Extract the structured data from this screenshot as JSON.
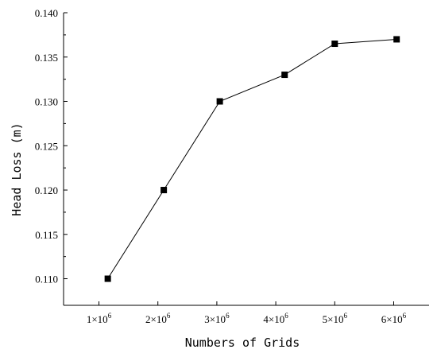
{
  "chart_data": {
    "type": "line",
    "xlabel": "Numbers of Grids",
    "ylabel": "Head Loss (m)",
    "ylim": [
      0.107,
      0.14
    ],
    "xlim": [
      0.4,
      6.6
    ],
    "x_ticks": [
      {
        "value": 1,
        "mantissa": "1",
        "base": "×10",
        "exp": "6"
      },
      {
        "value": 2,
        "mantissa": "2",
        "base": "×10",
        "exp": "6"
      },
      {
        "value": 3,
        "mantissa": "3",
        "base": "×10",
        "exp": "6"
      },
      {
        "value": 4,
        "mantissa": "4",
        "base": "×10",
        "exp": "6"
      },
      {
        "value": 5,
        "mantissa": "5",
        "base": "×10",
        "exp": "6"
      },
      {
        "value": 6,
        "mantissa": "6",
        "base": "×10",
        "exp": "6"
      }
    ],
    "y_ticks": [
      "0.110",
      "0.115",
      "0.120",
      "0.125",
      "0.130",
      "0.135",
      "0.140"
    ],
    "series": [
      {
        "x": [
          1.15,
          2.1,
          3.05,
          4.15,
          5.0,
          6.05
        ],
        "y": [
          0.11,
          0.12,
          0.13,
          0.133,
          0.1365,
          0.137
        ],
        "marker": "square",
        "color": "#000000"
      }
    ],
    "grid": false,
    "legend": "none"
  }
}
